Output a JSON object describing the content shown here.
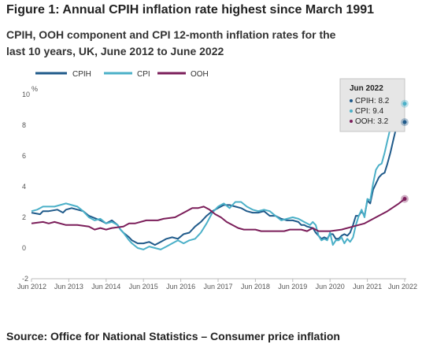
{
  "figure": {
    "title": "Figure 1: Annual CPIH inflation rate highest since March 1991",
    "subtitle": "CPIH, OOH component and CPI 12-month inflation rates for the last 10 years, UK, June 2012 to June 2022",
    "source": "Source: Office for National Statistics – Consumer price inflation"
  },
  "tooltip": {
    "title": "Jun 2022",
    "lines": [
      "CPIH: 8.2",
      "CPI: 9.4",
      "OOH: 3.2"
    ]
  },
  "chart_data": {
    "type": "line",
    "x_start": "Jun 2012",
    "x_end": "Jun 2022",
    "ylabel": "%",
    "ylim": [
      -2,
      10
    ],
    "yticks": [
      "-2",
      "0",
      "2",
      "4",
      "6",
      "8",
      "10"
    ],
    "xticks": [
      "Jun 2012",
      "Jun 2013",
      "Jun 2014",
      "Jun 2015",
      "Jun 2016",
      "Jun 2017",
      "Jun 2018",
      "Jun 2019",
      "Jun 2020",
      "Jun 2021",
      "Jun 2022"
    ],
    "legend_position": "top-left",
    "grid": false,
    "series": [
      {
        "name": "CPIH",
        "color": "#1f5a8a",
        "anchors": [
          [
            0,
            2.3
          ],
          [
            3,
            2.2
          ],
          [
            4,
            2.4
          ],
          [
            6,
            2.4
          ],
          [
            9,
            2.5
          ],
          [
            11,
            2.3
          ],
          [
            12,
            2.5
          ],
          [
            14,
            2.6
          ],
          [
            18,
            2.4
          ],
          [
            20,
            2.1
          ],
          [
            24,
            1.8
          ],
          [
            26,
            1.6
          ],
          [
            28,
            1.8
          ],
          [
            30,
            1.5
          ],
          [
            31,
            1.2
          ],
          [
            32,
            1.0
          ],
          [
            34,
            0.7
          ],
          [
            35,
            0.5
          ],
          [
            37,
            0.3
          ],
          [
            39,
            0.3
          ],
          [
            41,
            0.4
          ],
          [
            43,
            0.2
          ],
          [
            45,
            0.4
          ],
          [
            47,
            0.6
          ],
          [
            49,
            0.7
          ],
          [
            51,
            0.6
          ],
          [
            53,
            0.9
          ],
          [
            55,
            1.0
          ],
          [
            57,
            1.4
          ],
          [
            59,
            1.7
          ],
          [
            61,
            2.1
          ],
          [
            63,
            2.4
          ],
          [
            65,
            2.6
          ],
          [
            67,
            2.8
          ],
          [
            69,
            2.8
          ],
          [
            71,
            2.7
          ],
          [
            73,
            2.6
          ],
          [
            75,
            2.4
          ],
          [
            77,
            2.3
          ],
          [
            79,
            2.3
          ],
          [
            81,
            2.4
          ],
          [
            83,
            2.1
          ],
          [
            85,
            2.1
          ],
          [
            87,
            1.9
          ],
          [
            89,
            1.8
          ],
          [
            91,
            1.8
          ],
          [
            93,
            1.7
          ],
          [
            94,
            1.5
          ],
          [
            95,
            1.5
          ],
          [
            96,
            1.4
          ],
          [
            98,
            1.3
          ],
          [
            99,
            1.0
          ],
          [
            100,
            0.8
          ],
          [
            101,
            0.6
          ],
          [
            102,
            0.7
          ],
          [
            103,
            0.6
          ],
          [
            104,
            0.9
          ],
          [
            105,
            0.9
          ],
          [
            106,
            0.6
          ],
          [
            107,
            0.6
          ],
          [
            108,
            0.8
          ],
          [
            109,
            0.9
          ],
          [
            110,
            0.8
          ],
          [
            111,
            1.0
          ],
          [
            112,
            1.5
          ],
          [
            113,
            2.1
          ],
          [
            114,
            2.1
          ],
          [
            115,
            2.4
          ],
          [
            116,
            2.1
          ],
          [
            117,
            3.1
          ],
          [
            118,
            2.9
          ],
          [
            119,
            3.8
          ],
          [
            120,
            4.2
          ],
          [
            121,
            4.6
          ],
          [
            122,
            4.8
          ],
          [
            123,
            4.9
          ],
          [
            124,
            5.5
          ],
          [
            125,
            6.2
          ],
          [
            126,
            7.0
          ],
          [
            127,
            7.8
          ],
          [
            128,
            7.9
          ],
          [
            130,
            8.2
          ]
        ]
      },
      {
        "name": "CPI",
        "color": "#4bb0c8",
        "anchors": [
          [
            0,
            2.4
          ],
          [
            2,
            2.5
          ],
          [
            4,
            2.7
          ],
          [
            6,
            2.7
          ],
          [
            8,
            2.7
          ],
          [
            10,
            2.8
          ],
          [
            12,
            2.9
          ],
          [
            14,
            2.8
          ],
          [
            16,
            2.7
          ],
          [
            18,
            2.4
          ],
          [
            20,
            2.0
          ],
          [
            22,
            1.8
          ],
          [
            24,
            1.9
          ],
          [
            26,
            1.6
          ],
          [
            28,
            1.7
          ],
          [
            30,
            1.5
          ],
          [
            31,
            1.2
          ],
          [
            32,
            1.0
          ],
          [
            34,
            0.5
          ],
          [
            35,
            0.3
          ],
          [
            37,
            0.0
          ],
          [
            39,
            -0.1
          ],
          [
            41,
            0.1
          ],
          [
            43,
            0.0
          ],
          [
            45,
            -0.1
          ],
          [
            47,
            0.1
          ],
          [
            49,
            0.3
          ],
          [
            51,
            0.5
          ],
          [
            53,
            0.3
          ],
          [
            55,
            0.5
          ],
          [
            57,
            0.6
          ],
          [
            59,
            1.0
          ],
          [
            61,
            1.6
          ],
          [
            63,
            2.3
          ],
          [
            65,
            2.7
          ],
          [
            67,
            2.9
          ],
          [
            69,
            2.6
          ],
          [
            71,
            3.0
          ],
          [
            73,
            3.0
          ],
          [
            75,
            2.7
          ],
          [
            77,
            2.5
          ],
          [
            79,
            2.4
          ],
          [
            81,
            2.5
          ],
          [
            83,
            2.4
          ],
          [
            85,
            2.1
          ],
          [
            87,
            1.8
          ],
          [
            89,
            1.9
          ],
          [
            91,
            2.0
          ],
          [
            93,
            1.9
          ],
          [
            95,
            1.7
          ],
          [
            97,
            1.5
          ],
          [
            98,
            1.7
          ],
          [
            99,
            1.5
          ],
          [
            100,
            0.8
          ],
          [
            101,
            0.5
          ],
          [
            102,
            0.6
          ],
          [
            103,
            0.5
          ],
          [
            104,
            1.0
          ],
          [
            105,
            0.2
          ],
          [
            106,
            0.5
          ],
          [
            107,
            0.5
          ],
          [
            108,
            0.7
          ],
          [
            109,
            0.3
          ],
          [
            110,
            0.6
          ],
          [
            111,
            0.4
          ],
          [
            112,
            0.7
          ],
          [
            113,
            1.5
          ],
          [
            114,
            2.1
          ],
          [
            115,
            2.5
          ],
          [
            116,
            2.0
          ],
          [
            117,
            3.2
          ],
          [
            118,
            3.1
          ],
          [
            119,
            4.2
          ],
          [
            120,
            5.1
          ],
          [
            121,
            5.4
          ],
          [
            122,
            5.5
          ],
          [
            123,
            6.2
          ],
          [
            124,
            7.0
          ],
          [
            125,
            7.8
          ],
          [
            126,
            9.0
          ],
          [
            127,
            9.1
          ],
          [
            129,
            9.2
          ],
          [
            130,
            9.4
          ]
        ]
      },
      {
        "name": "OOH",
        "color": "#7b1e5a",
        "anchors": [
          [
            0,
            1.6
          ],
          [
            4,
            1.7
          ],
          [
            6,
            1.6
          ],
          [
            8,
            1.7
          ],
          [
            12,
            1.5
          ],
          [
            16,
            1.5
          ],
          [
            20,
            1.4
          ],
          [
            22,
            1.2
          ],
          [
            24,
            1.3
          ],
          [
            26,
            1.2
          ],
          [
            28,
            1.3
          ],
          [
            32,
            1.4
          ],
          [
            34,
            1.6
          ],
          [
            36,
            1.6
          ],
          [
            40,
            1.8
          ],
          [
            44,
            1.8
          ],
          [
            46,
            1.9
          ],
          [
            50,
            2.0
          ],
          [
            52,
            2.2
          ],
          [
            54,
            2.4
          ],
          [
            56,
            2.6
          ],
          [
            58,
            2.6
          ],
          [
            60,
            2.7
          ],
          [
            62,
            2.5
          ],
          [
            64,
            2.2
          ],
          [
            66,
            2.0
          ],
          [
            68,
            1.7
          ],
          [
            70,
            1.5
          ],
          [
            72,
            1.3
          ],
          [
            74,
            1.2
          ],
          [
            78,
            1.2
          ],
          [
            80,
            1.1
          ],
          [
            82,
            1.1
          ],
          [
            84,
            1.1
          ],
          [
            86,
            1.1
          ],
          [
            88,
            1.1
          ],
          [
            90,
            1.2
          ],
          [
            94,
            1.2
          ],
          [
            96,
            1.1
          ],
          [
            98,
            1.3
          ],
          [
            100,
            1.1
          ],
          [
            104,
            1.1
          ],
          [
            108,
            1.2
          ],
          [
            112,
            1.4
          ],
          [
            116,
            1.6
          ],
          [
            120,
            2.0
          ],
          [
            124,
            2.4
          ],
          [
            128,
            2.9
          ],
          [
            130,
            3.2
          ]
        ]
      }
    ]
  }
}
